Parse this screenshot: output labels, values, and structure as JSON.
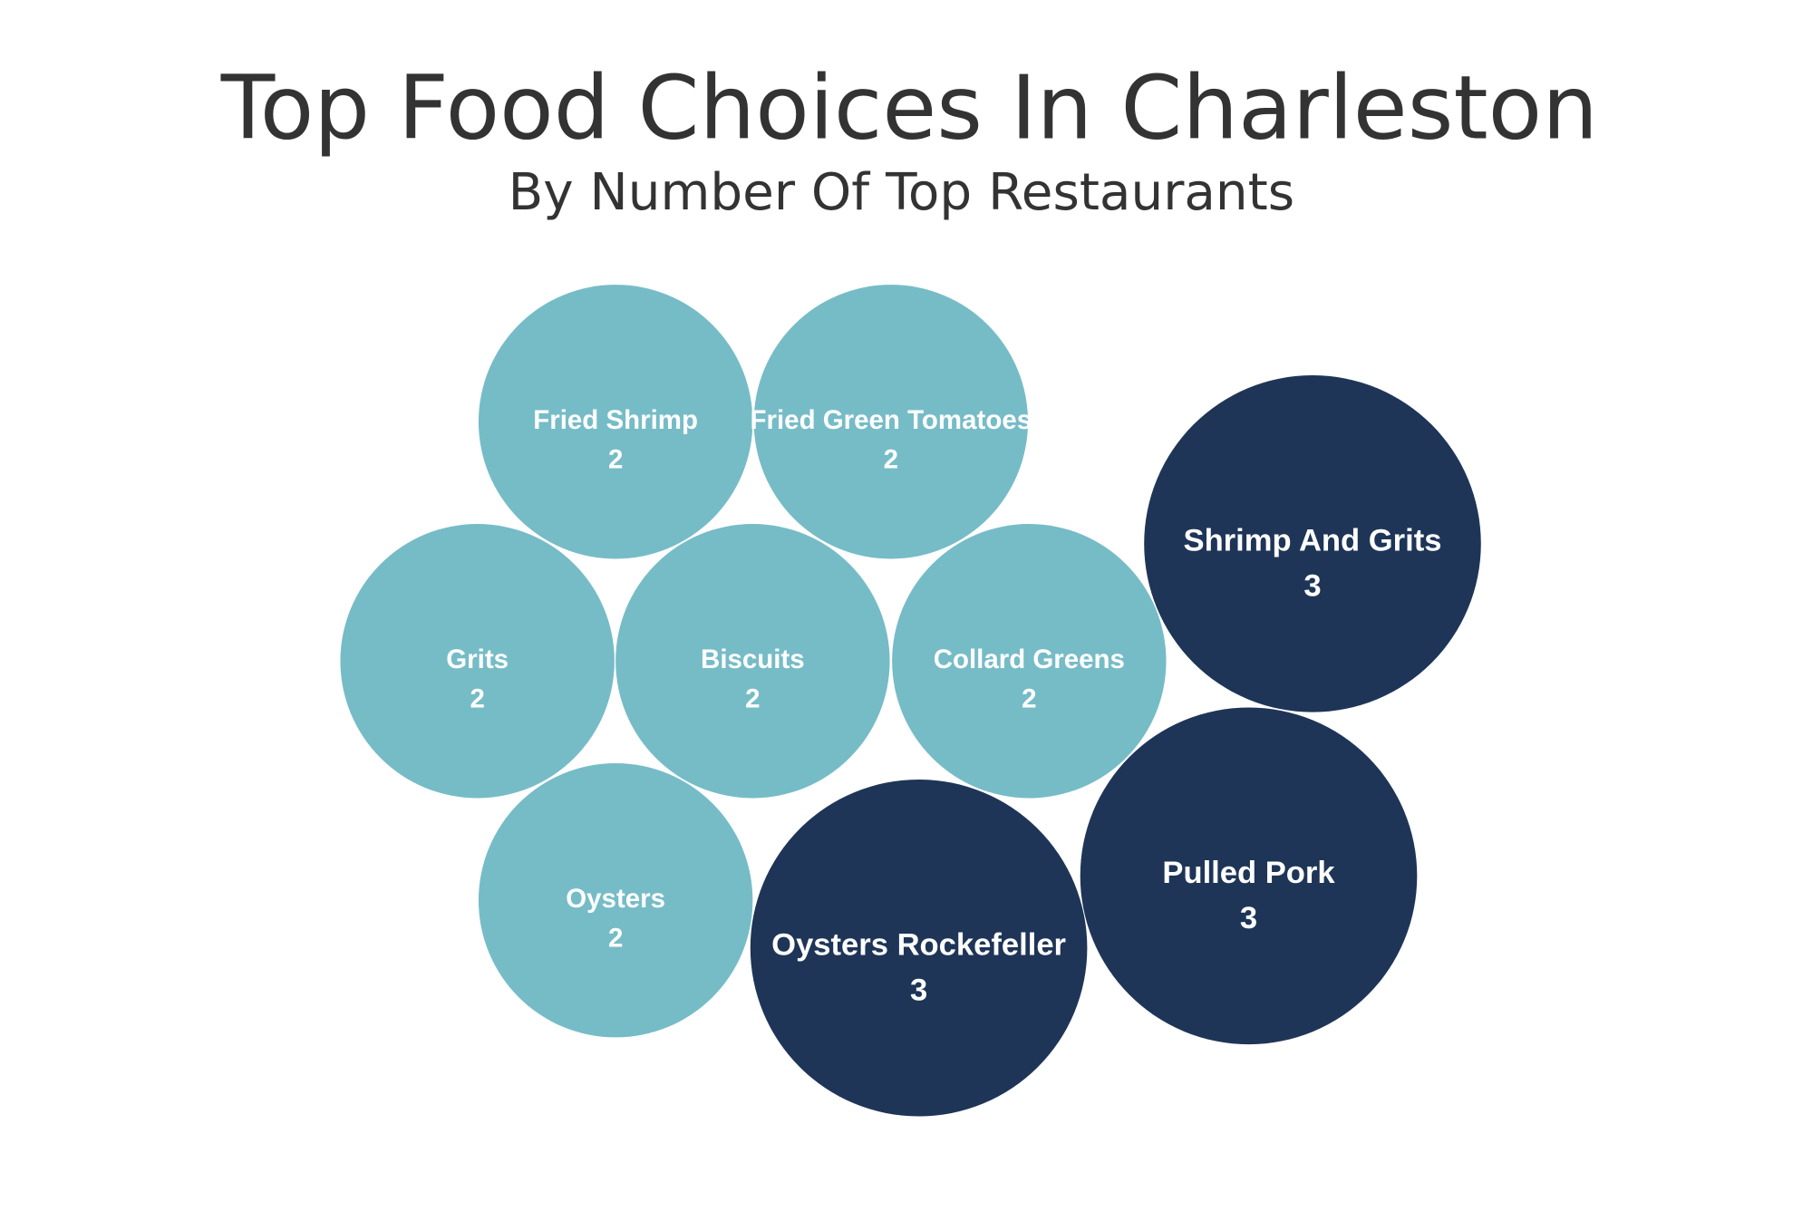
{
  "chart_data": {
    "type": "bubble",
    "title": "Top Food Choices In Charleston",
    "subtitle": "By Number Of Top Restaurants",
    "colors": {
      "2": "#76bcc7",
      "3": "#1e3557"
    },
    "items": [
      {
        "name": "Fried Shrimp",
        "value": 2
      },
      {
        "name": "Fried Green Tomatoes",
        "value": 2
      },
      {
        "name": "Grits",
        "value": 2
      },
      {
        "name": "Biscuits",
        "value": 2
      },
      {
        "name": "Collard Greens",
        "value": 2
      },
      {
        "name": "Oysters",
        "value": 2
      },
      {
        "name": "Shrimp And Grits",
        "value": 3
      },
      {
        "name": "Pulled Pork",
        "value": 3
      },
      {
        "name": "Oysters Rockefeller",
        "value": 3
      }
    ]
  }
}
